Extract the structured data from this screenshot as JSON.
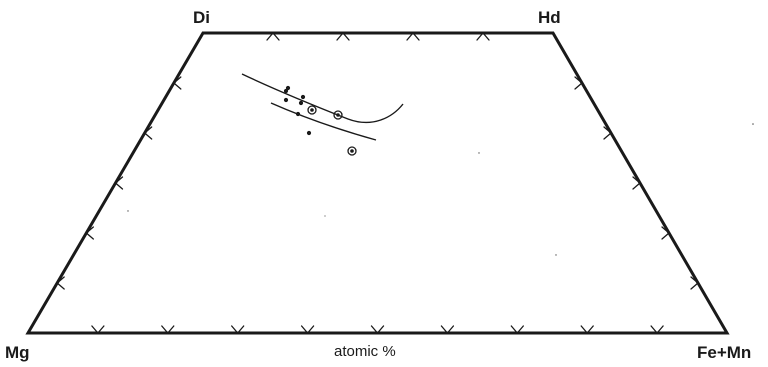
{
  "vertices": {
    "top_left": "Di",
    "top_right": "Hd",
    "bottom_left": "Mg",
    "bottom_right": "Fe+Mn"
  },
  "axis_label": "atomic %",
  "diagram": {
    "type": "Di-Hd-Mg-Fe pyroxene quadrilateral",
    "tick_divisions": 10,
    "point_symbols": [
      "dot",
      "circled-dot"
    ],
    "ink_color": "#1a1a1a"
  }
}
